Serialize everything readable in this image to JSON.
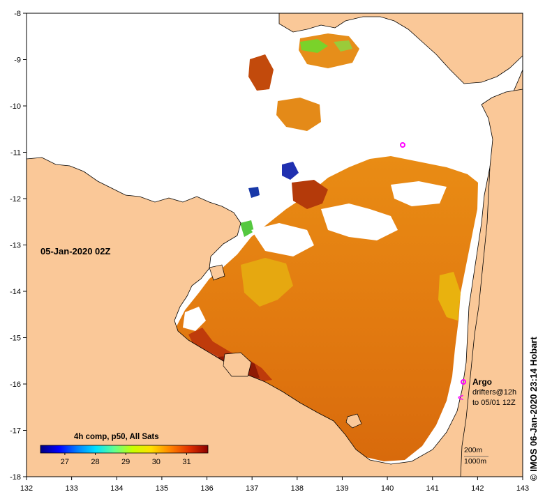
{
  "map": {
    "date_label": "05-Jan-2020 02Z",
    "colorbar": {
      "title": "4h comp, p50, All Sats",
      "ticks": [
        "27",
        "28",
        "29",
        "30",
        "31"
      ],
      "range": [
        26.2,
        31.7
      ],
      "tick_values": [
        27,
        28,
        29,
        30,
        31
      ],
      "colors": [
        "#00007f",
        "#0000ff",
        "#0080ff",
        "#00e0ff",
        "#60ff90",
        "#c8ff00",
        "#ffe000",
        "#ff8000",
        "#e03000",
        "#8b0000"
      ]
    },
    "lon_ticks": [
      "132",
      "133",
      "134",
      "135",
      "136",
      "137",
      "138",
      "139",
      "140",
      "141",
      "142",
      "143"
    ],
    "lat_ticks": [
      "-8",
      "-9",
      "-10",
      "-11",
      "-12",
      "-13",
      "-14",
      "-15",
      "-16",
      "-17",
      "-18"
    ],
    "legend": {
      "argo_label": "Argo",
      "drifters_label": "drifters@12h",
      "drifters_period": "to 05/01 12Z"
    },
    "isobaths": {
      "label_200": "200m",
      "label_1000": "1000m"
    },
    "copyright": "© IMOS 06-Jan-2020 23:14 Hobart",
    "colors": {
      "land": "#fac898",
      "no_data": "#ffffff",
      "sst_warm": "#e07a10",
      "sst_hot": "#b82a08",
      "argo": "#ff00ff"
    }
  }
}
